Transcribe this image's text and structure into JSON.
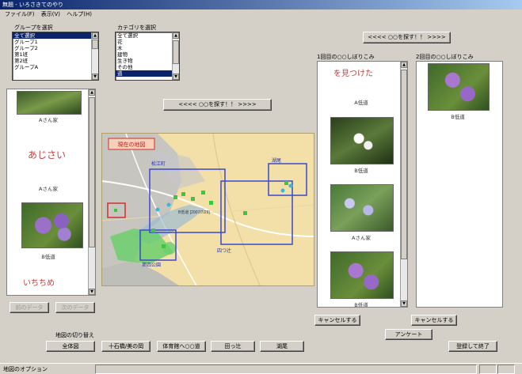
{
  "window": {
    "title": "無題 - いろさきてのやり"
  },
  "menu": {
    "file": "ファイル(F)",
    "view": "表示(V)",
    "help": "ヘルプ(H)"
  },
  "group_select": {
    "label": "グループを選択",
    "items": [
      "全て選択",
      "グループ1",
      "グループ2",
      "第1班",
      "第2班",
      "グループA"
    ]
  },
  "category_select": {
    "label": "カテゴリを選択",
    "items": [
      "全て選択",
      "花",
      "木",
      "建物",
      "生き物",
      "その他",
      "道"
    ]
  },
  "left_gallery": {
    "captions": [
      "Aさん家",
      "Aさん家",
      "B低道"
    ],
    "handwriting": [
      "あじさい",
      "いちちめ"
    ],
    "buttons": {
      "prev": "前のデータ",
      "next": "次のデータ"
    }
  },
  "map": {
    "top_button": "<<<< ○○を探す！！ >>>>",
    "toolbar": {
      "label": "地図の切り替え",
      "b1": "全体図",
      "b2": "十石橋/美の岡",
      "b3": "体育館へ○○道",
      "b4": "田っ辻",
      "b5": "湖尾"
    },
    "badge": "現在の地図",
    "labels": {
      "a": "松江町",
      "b": "湖尾",
      "c": "四つ辻",
      "d": "第四公園",
      "e": "B低道 [2007/7/29]"
    }
  },
  "search_button": "<<<< ○○を探す！！ >>>>",
  "first_search": {
    "label": "1回目の○○しぼりこみ",
    "captions": [
      "A低道",
      "B低道",
      "Aさん家",
      "B低道"
    ],
    "handwriting": "を見つけた",
    "cancel": "キャンセルする"
  },
  "second_search": {
    "label": "2回目の○○しぼりこみ",
    "captions": [
      "B低道"
    ],
    "cancel": "キャンセルする"
  },
  "survey_button": "アンケート",
  "finish_button": "登録して終了",
  "status": {
    "text": "地図のオプション"
  }
}
